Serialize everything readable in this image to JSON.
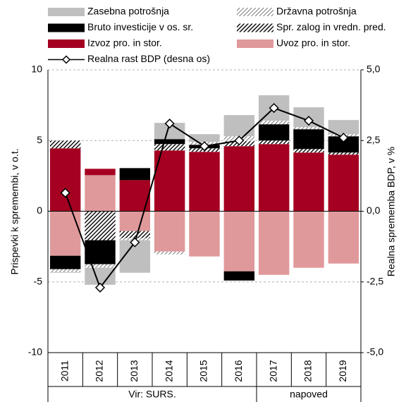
{
  "chart_data": {
    "type": "bar",
    "y_label": "Prispevki k spremembi, v o.t.",
    "y2_label": "Realna sprememba BDP, v %",
    "categories": [
      "2011",
      "2012",
      "2013",
      "2014",
      "2015",
      "2016",
      "2017",
      "2018",
      "2019"
    ],
    "series": [
      {
        "name": "Zasebna potrošnja",
        "color": "#bfbfbf",
        "values": [
          -0.05,
          -1.2,
          -2.3,
          1.15,
          0.55,
          1.5,
          1.8,
          1.4,
          1.0
        ]
      },
      {
        "name": "Državna potrošnja",
        "color": "#404040",
        "hatch": "sparse",
        "values": [
          -0.2,
          -0.25,
          -0.15,
          -0.2,
          0.2,
          0.35,
          0.25,
          0.15,
          0.15
        ]
      },
      {
        "name": "Bruto investicije v os. sr.",
        "color": "#000000",
        "values": [
          -0.95,
          -1.7,
          0.85,
          0.35,
          0.25,
          -0.65,
          1.15,
          1.4,
          1.15
        ]
      },
      {
        "name": "Spr. zalog in vredn. pred.",
        "color": "#000000",
        "hatch": "dense",
        "values": [
          0.55,
          -2.05,
          -0.5,
          0.45,
          0.25,
          0.35,
          0.25,
          0.25,
          0.15
        ]
      },
      {
        "name": "Izvoz pro. in stor.",
        "color": "#a50021",
        "values": [
          4.45,
          0.45,
          2.2,
          4.3,
          4.2,
          4.6,
          4.75,
          4.15,
          4.0
        ]
      },
      {
        "name": "Uvoz pro. in stor.",
        "color": "#e0999b",
        "values": [
          -3.15,
          2.55,
          -1.4,
          -2.85,
          -3.2,
          -4.25,
          -4.5,
          -4.0,
          -3.7
        ]
      },
      {
        "name": "Realna rast BDP (desna os)",
        "color": "#000000",
        "axis": "y2",
        "values": [
          0.65,
          -2.7,
          -1.1,
          3.1,
          2.3,
          2.5,
          3.65,
          3.2,
          2.6
        ]
      }
    ],
    "ylim": [
      -10,
      10
    ],
    "yticks": [
      -10,
      -5,
      0,
      5,
      10
    ],
    "y2lim": [
      -5,
      5
    ],
    "y2ticks": [
      {
        "value": -5,
        "label": "-5,0"
      },
      {
        "value": -2.5,
        "label": "-2,5"
      },
      {
        "value": 0,
        "label": "0,0"
      },
      {
        "value": 2.5,
        "label": "2,5"
      },
      {
        "value": 5,
        "label": "5,0"
      }
    ],
    "grid": true,
    "source": "Vir: SURS.",
    "forecast_label": "napoved"
  }
}
